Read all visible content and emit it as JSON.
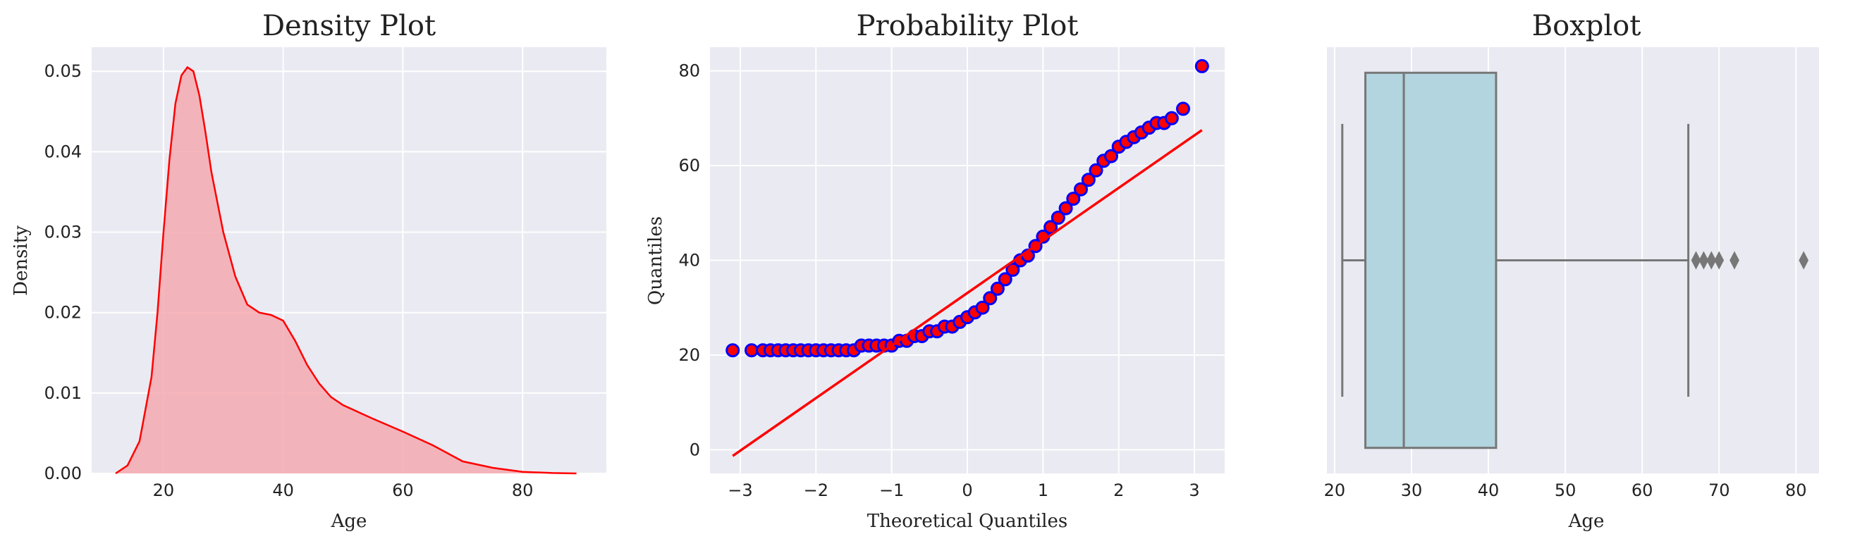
{
  "chart_data": [
    {
      "type": "area",
      "title": "Density Plot",
      "xlabel": "Age",
      "ylabel": "Density",
      "xlim": [
        8,
        94
      ],
      "ylim": [
        0,
        0.053
      ],
      "xticks": [
        20,
        40,
        60,
        80
      ],
      "yticks": [
        0.0,
        0.01,
        0.02,
        0.03,
        0.04,
        0.05
      ],
      "ytick_labels": [
        "0.00",
        "0.01",
        "0.02",
        "0.03",
        "0.04",
        "0.05"
      ],
      "grid": true,
      "colors": {
        "line": "#ff0000",
        "fill": "#f4a9b0",
        "background": "#eaeaf2"
      },
      "x": [
        12,
        14,
        16,
        18,
        19,
        20,
        21,
        22,
        23,
        24,
        25,
        26,
        27,
        28,
        30,
        32,
        34,
        36,
        38,
        40,
        42,
        44,
        46,
        48,
        50,
        55,
        60,
        65,
        70,
        75,
        80,
        85,
        89
      ],
      "y": [
        0.0,
        0.001,
        0.004,
        0.012,
        0.02,
        0.03,
        0.039,
        0.046,
        0.0495,
        0.0505,
        0.05,
        0.047,
        0.0425,
        0.0375,
        0.03,
        0.0245,
        0.021,
        0.02,
        0.0197,
        0.019,
        0.0165,
        0.0135,
        0.0112,
        0.0095,
        0.0085,
        0.0068,
        0.0052,
        0.0035,
        0.0015,
        0.0007,
        0.0002,
        5e-05,
        0.0
      ]
    },
    {
      "type": "scatter",
      "title": "Probability Plot",
      "xlabel": "Theoretical Quantiles",
      "ylabel": "Quantiles",
      "xlim": [
        -3.4,
        3.4
      ],
      "ylim": [
        -5,
        85
      ],
      "xticks": [
        -3,
        -2,
        -1,
        0,
        1,
        2,
        3
      ],
      "xtick_labels": [
        "−3",
        "−2",
        "−1",
        "0",
        "1",
        "2",
        "3"
      ],
      "yticks": [
        0,
        20,
        40,
        60,
        80
      ],
      "grid": true,
      "colors": {
        "marker_fill": "#ff0000",
        "marker_edge": "#0000ff",
        "fit_line": "#ff0000",
        "background": "#eaeaf2"
      },
      "points": [
        [
          -3.1,
          21
        ],
        [
          -2.85,
          21
        ],
        [
          -2.7,
          21
        ],
        [
          -2.6,
          21
        ],
        [
          -2.5,
          21
        ],
        [
          -2.4,
          21
        ],
        [
          -2.3,
          21
        ],
        [
          -2.2,
          21
        ],
        [
          -2.1,
          21
        ],
        [
          -2.0,
          21
        ],
        [
          -1.9,
          21
        ],
        [
          -1.8,
          21
        ],
        [
          -1.7,
          21
        ],
        [
          -1.6,
          21
        ],
        [
          -1.5,
          21
        ],
        [
          -1.4,
          22
        ],
        [
          -1.3,
          22
        ],
        [
          -1.2,
          22
        ],
        [
          -1.1,
          22
        ],
        [
          -1.0,
          22
        ],
        [
          -0.9,
          23
        ],
        [
          -0.8,
          23
        ],
        [
          -0.7,
          24
        ],
        [
          -0.6,
          24
        ],
        [
          -0.5,
          25
        ],
        [
          -0.4,
          25
        ],
        [
          -0.3,
          26
        ],
        [
          -0.2,
          26
        ],
        [
          -0.1,
          27
        ],
        [
          0.0,
          28
        ],
        [
          0.1,
          29
        ],
        [
          0.2,
          30
        ],
        [
          0.3,
          32
        ],
        [
          0.4,
          34
        ],
        [
          0.5,
          36
        ],
        [
          0.6,
          38
        ],
        [
          0.7,
          40
        ],
        [
          0.8,
          41
        ],
        [
          0.9,
          43
        ],
        [
          1.0,
          45
        ],
        [
          1.1,
          47
        ],
        [
          1.2,
          49
        ],
        [
          1.3,
          51
        ],
        [
          1.4,
          53
        ],
        [
          1.5,
          55
        ],
        [
          1.6,
          57
        ],
        [
          1.7,
          59
        ],
        [
          1.8,
          61
        ],
        [
          1.9,
          62
        ],
        [
          2.0,
          64
        ],
        [
          2.1,
          65
        ],
        [
          2.2,
          66
        ],
        [
          2.3,
          67
        ],
        [
          2.4,
          68
        ],
        [
          2.5,
          69
        ],
        [
          2.6,
          69
        ],
        [
          2.7,
          70
        ],
        [
          2.85,
          72
        ],
        [
          3.1,
          81
        ]
      ],
      "fit_line": {
        "x": [
          -3.1,
          3.1
        ],
        "y": [
          -1.3,
          67.5
        ]
      }
    },
    {
      "type": "box",
      "title": "Boxplot",
      "xlabel": "Age",
      "xlim": [
        19,
        83
      ],
      "xticks": [
        20,
        30,
        40,
        50,
        60,
        70,
        80
      ],
      "grid": true,
      "colors": {
        "box_fill": "#b2d5df",
        "box_edge": "#777777",
        "background": "#eaeaf2"
      },
      "whisker_low": 21,
      "q1": 24,
      "median": 29,
      "q3": 41,
      "whisker_high": 66,
      "outliers": [
        67,
        68,
        69,
        70,
        72,
        81
      ]
    }
  ]
}
